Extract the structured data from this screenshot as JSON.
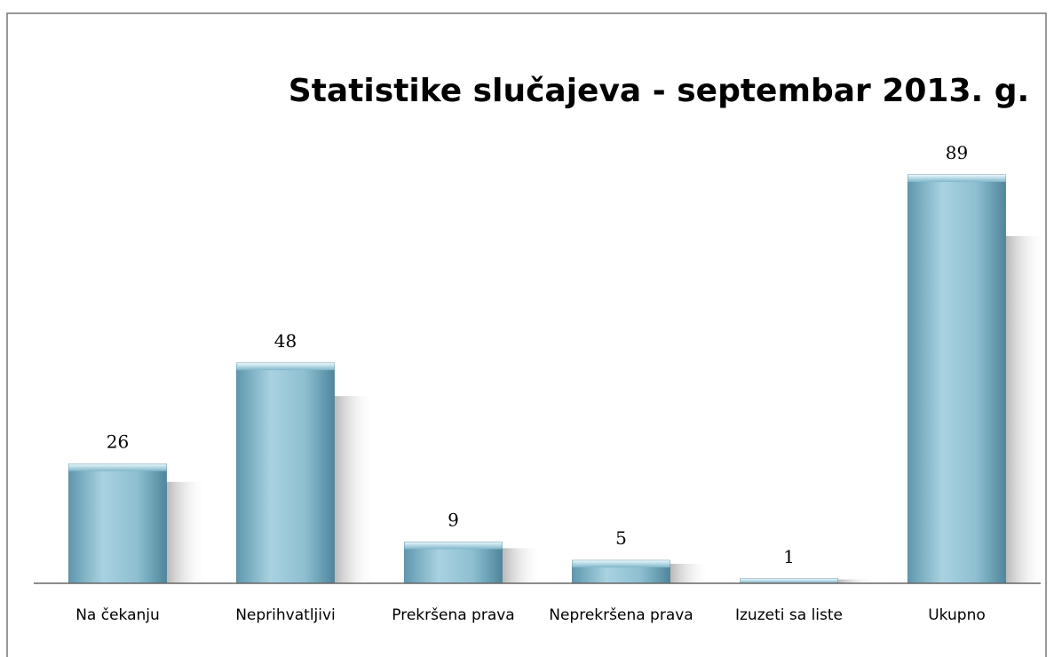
{
  "chart_data": {
    "type": "bar",
    "title": "Statistike slučajeva - septembar 2013. g.",
    "categories": [
      "Na čekanju",
      "Neprihvatljivi",
      "Prekršena prava",
      "Neprekršena prava",
      "Izuzeti sa liste",
      "Ukupno"
    ],
    "values": [
      26,
      48,
      9,
      5,
      1,
      89
    ],
    "color": "#7fb8cc"
  }
}
